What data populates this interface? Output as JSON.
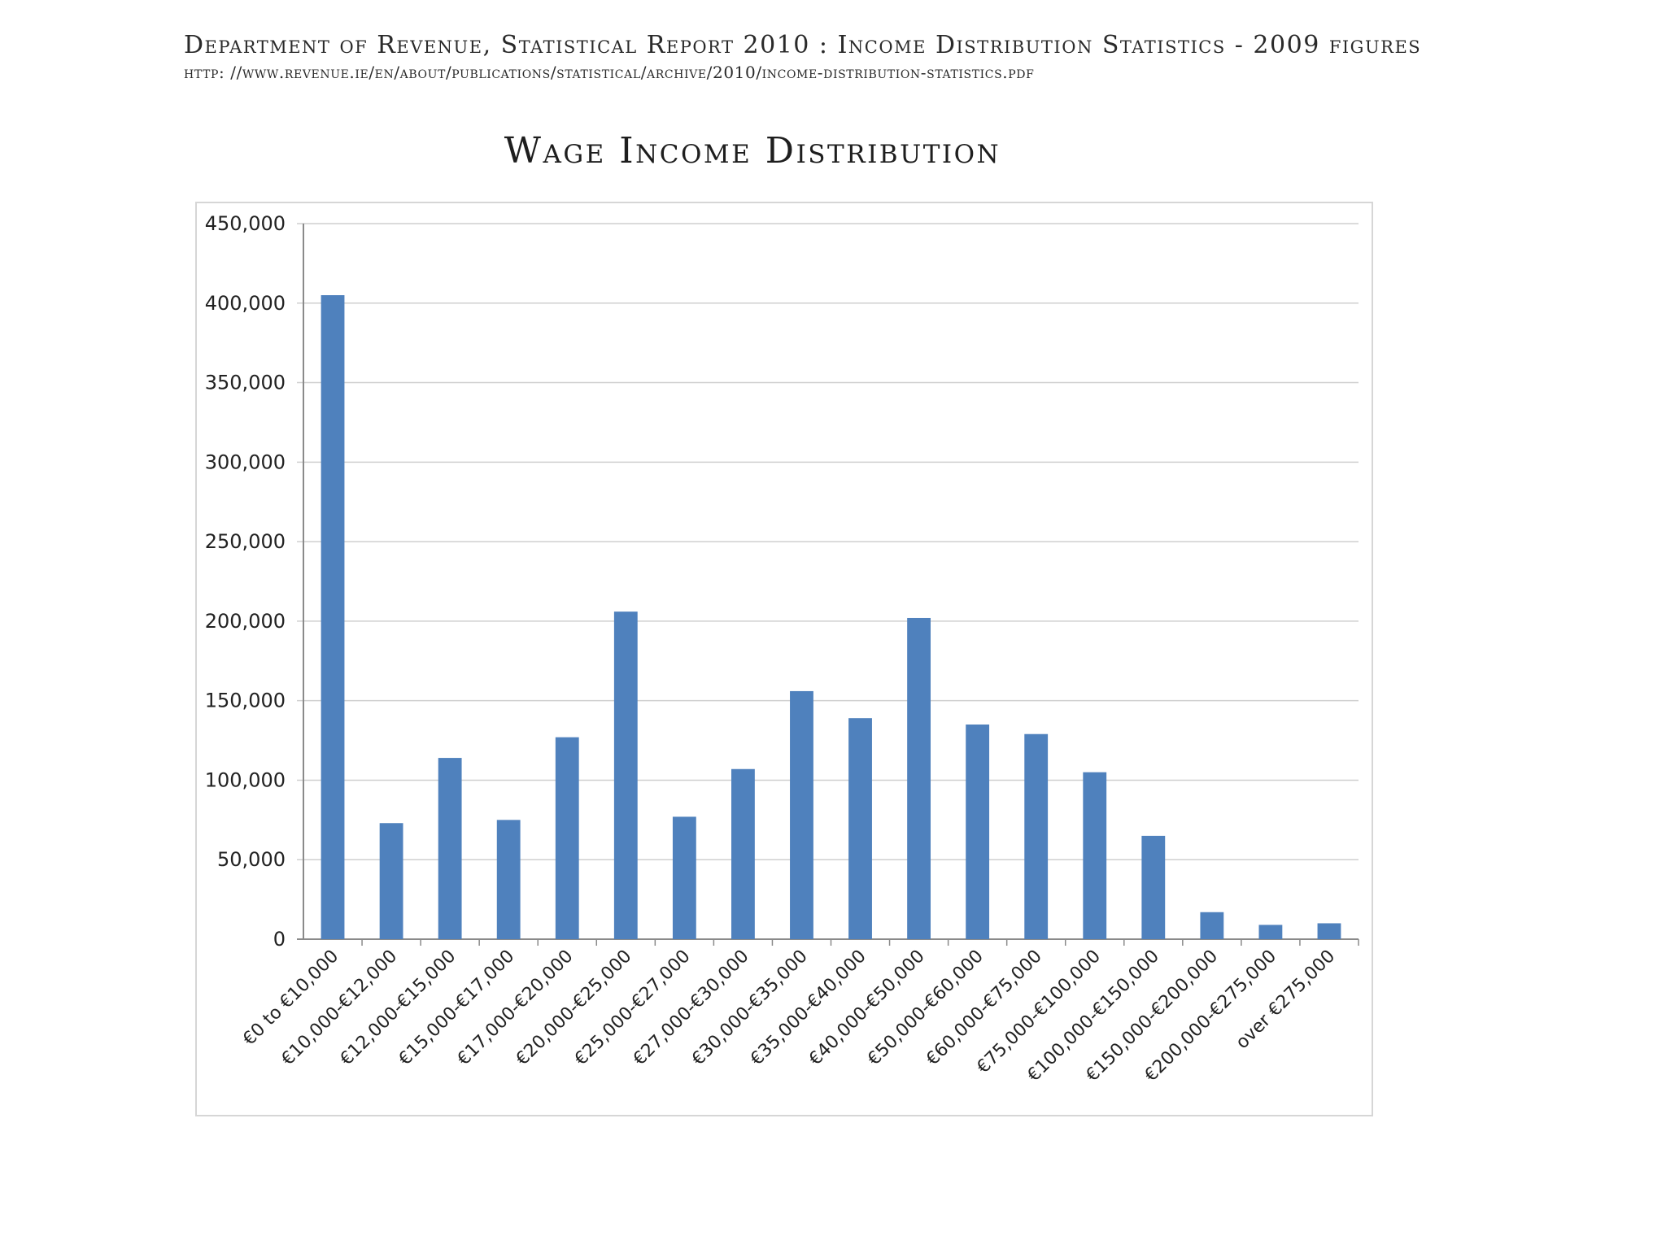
{
  "source": {
    "line1": "Department of Revenue, Statistical Report 2010 : Income Distribution Statistics -   2009 figures",
    "line2": "http: //www.revenue.ie/en/about/publications/statistical/archive/2010/income-distribution-statistics.pdf"
  },
  "chart_data": {
    "type": "bar",
    "title": "Wage Income Distribution",
    "xlabel": "",
    "ylabel": "",
    "ylim": [
      0,
      450000
    ],
    "yticks": [
      "0",
      "50,000",
      "100,000",
      "150,000",
      "200,000",
      "250,000",
      "300,000",
      "350,000",
      "400,000",
      "450,000"
    ],
    "grid": true,
    "bar_color": "#4f81bd",
    "categories": [
      "€0 to €10,000",
      "€10,000-€12,000",
      "€12,000-€15,000",
      "€15,000-€17,000",
      "€17,000-€20,000",
      "€20,000-€25,000",
      "€25,000-€27,000",
      "€27,000-€30,000",
      "€30,000-€35,000",
      "€35,000-€40,000",
      "€40,000-€50,000",
      "€50,000-€60,000",
      "€60,000-€75,000",
      "€75,000-€100,000",
      "€100,000-€150,000",
      "€150,000-€200,000",
      "€200,000-€275,000",
      "over €275,000"
    ],
    "values": [
      405000,
      73000,
      114000,
      75000,
      127000,
      206000,
      77000,
      107000,
      156000,
      139000,
      202000,
      135000,
      129000,
      105000,
      65000,
      17000,
      9000,
      10000
    ]
  }
}
